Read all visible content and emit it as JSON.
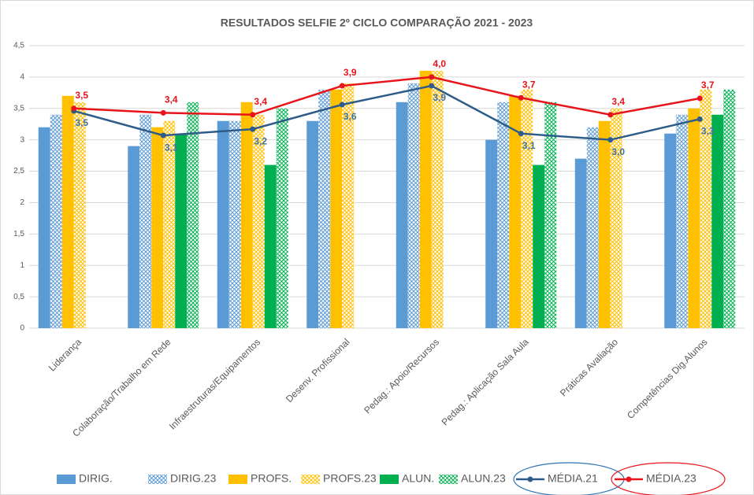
{
  "chart_data": {
    "type": "bar_line",
    "title": "RESULTADOS SELFIE 2º CICLO COMPARAÇÃO 2021 - 2023",
    "categories": [
      "Liderança",
      "Colaboração/Trabalho em Rede",
      "Infraestruturas/Equipamentos",
      "Desenv. Profissional",
      "Pedag.: Apoio/Recursos",
      "Pedag.: Aplicação Sala Aula",
      "Práticas Avaliação",
      "Competências Dig.Alunos"
    ],
    "ylim": [
      0,
      4.5
    ],
    "yticks": [
      0,
      {
        "value": 0.5,
        "label": "0,5"
      },
      1,
      {
        "value": 1.5,
        "label": "1,5"
      },
      2,
      {
        "value": 2.5,
        "label": "2,5"
      },
      3,
      {
        "value": 3.5,
        "label": "3,5"
      },
      4,
      {
        "value": 4.5,
        "label": "4,5"
      }
    ],
    "grid": true,
    "legend": "bottom",
    "series": [
      {
        "name": "DIRIG.",
        "type": "bar",
        "color": "#5b9bd5",
        "hatched": false,
        "values": [
          3.2,
          2.9,
          3.3,
          3.3,
          3.6,
          3.0,
          2.7,
          3.1
        ]
      },
      {
        "name": "DIRIG.23",
        "type": "bar",
        "color": "#5b9bd5",
        "hatched": true,
        "values": [
          3.4,
          3.4,
          3.3,
          3.8,
          3.9,
          3.6,
          3.2,
          3.4
        ]
      },
      {
        "name": "PROFS.",
        "type": "bar",
        "color": "#ffc000",
        "hatched": false,
        "values": [
          3.7,
          3.2,
          3.6,
          3.8,
          4.1,
          3.7,
          3.3,
          3.5
        ]
      },
      {
        "name": "PROFS.23",
        "type": "bar",
        "color": "#ffc000",
        "hatched": true,
        "values": [
          3.6,
          3.3,
          3.4,
          3.9,
          4.1,
          3.8,
          3.5,
          3.8
        ]
      },
      {
        "name": "ALUN.",
        "type": "bar",
        "color": "#00b050",
        "hatched": false,
        "values": [
          null,
          3.1,
          2.6,
          null,
          null,
          2.6,
          null,
          3.4
        ]
      },
      {
        "name": "ALUN.23",
        "type": "bar",
        "color": "#00b050",
        "hatched": true,
        "values": [
          null,
          3.6,
          3.5,
          null,
          null,
          3.6,
          null,
          3.8
        ]
      },
      {
        "name": "MÉDIA.21",
        "type": "line",
        "color": "#2e5c8a",
        "label_side": "below",
        "values": [
          3.46,
          3.07,
          3.17,
          3.56,
          3.86,
          3.1,
          3.0,
          3.33
        ],
        "value_labels": [
          "3,5",
          "3,1",
          "3,2",
          "3,6",
          "3,9",
          "3,1",
          "3,0",
          "3,3"
        ]
      },
      {
        "name": "MÉDIA.23",
        "type": "line",
        "color": "#e8141b",
        "label_side": "above",
        "values": [
          3.5,
          3.43,
          3.4,
          3.86,
          4.0,
          3.67,
          3.4,
          3.66
        ],
        "value_labels": [
          "3,5",
          "3,4",
          "3,4",
          "3,9",
          "4,0",
          "3,7",
          "3,4",
          "3,7"
        ]
      }
    ]
  }
}
